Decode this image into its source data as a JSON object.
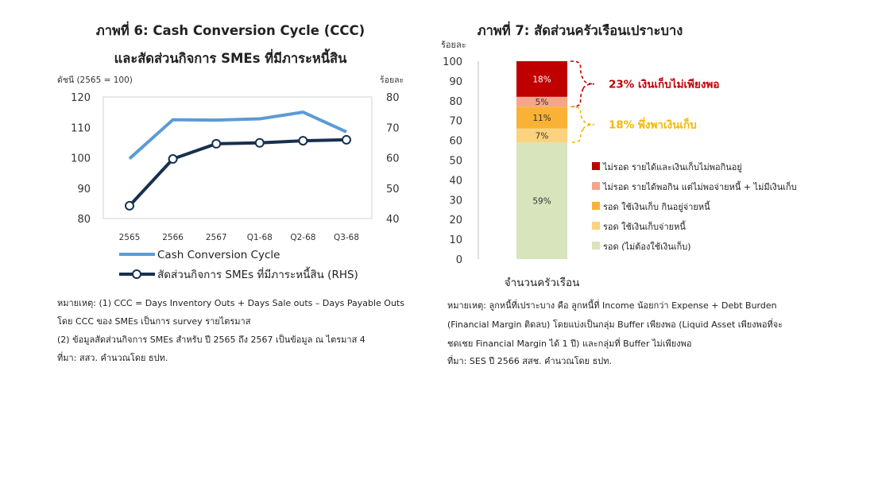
{
  "left_chart": {
    "title_line1": "ภาพที่ 6: Cash Conversion Cycle (CCC)",
    "title_line2": "และสัดส่วนกิจการ SMEs ที่มีภาระหนี้สิน",
    "notes": [
      "หมายเหตุ: (1) CCC = Days Inventory Outs + Days Sale outs – Days Payable Outs",
      "โดย CCC ของ SMEs เป็นการ survey รายไตรมาส",
      "(2) ข้อมูลสัดส่วนกิจการ SMEs สำหรับ ปี 2565 ถึง 2567 เป็นข้อมูล ณ ไตรมาส 4",
      "ที่มา: สสว. คำนวณโดย ธปท."
    ]
  },
  "right_chart": {
    "title": "ภาพที่ 7: สัดส่วนครัวเรือนเปราะบาง",
    "notes": [
      "หมายเหตุ: ลูกหนี้ที่เปราะบาง คือ ลูกหนี้ที่ Income น้อยกว่า Expense + Debt Burden",
      "(Financial Margin ติดลบ) โดยแบ่งเป็นกลุ่ม Buffer เพียงพอ (Liquid Asset เพียงพอที่จะ",
      "ชดเชย Financial Margin ได้ 1 ปี) และกลุ่มที่ Buffer ไม่เพียงพอ",
      "ที่มา: SES ปี 2566 สสช. คำนวณโดย ธปท."
    ]
  },
  "chart_data": [
    {
      "type": "line",
      "title": "ภาพที่ 6: Cash Conversion Cycle (CCC) และสัดส่วนกิจการ SMEs ที่มีภาระหนี้สิน",
      "categories": [
        "2565",
        "2566",
        "2567",
        "Q1-68",
        "Q2-68",
        "Q3-68"
      ],
      "ylabel": "ดัชนี (2565 = 100)",
      "ylabel_right": "ร้อยละ",
      "ylim": [
        80,
        120
      ],
      "yticks": [
        80,
        90,
        100,
        110,
        120
      ],
      "ylim_right": [
        40,
        80
      ],
      "yticks_right": [
        40,
        50,
        60,
        70,
        80
      ],
      "series": [
        {
          "name": "Cash Conversion Cycle",
          "axis": "left",
          "color": "#5b9bd5",
          "values": [
            99.7,
            112.5,
            112.4,
            112.8,
            115.0,
            108.5
          ]
        },
        {
          "name": "สัดส่วนกิจการ SMEs ที่มีภาระหนี้สิน (RHS)",
          "axis": "right",
          "color": "#17304f",
          "values": [
            44.2,
            59.6,
            64.6,
            64.9,
            65.6,
            65.9
          ]
        }
      ],
      "legend_position": "bottom"
    },
    {
      "type": "bar",
      "stacked": true,
      "title": "ภาพที่ 7: สัดส่วนครัวเรือนเปราะบาง",
      "ylabel": "ร้อยละ",
      "xlabel": "จำนวนครัวเรือน",
      "ylim": [
        0,
        100
      ],
      "yticks": [
        0,
        10,
        20,
        30,
        40,
        50,
        60,
        70,
        80,
        90,
        100
      ],
      "segments": [
        {
          "name": "รอด (ไม่ต้องใช้เงินเก็บ)",
          "value": 59,
          "label": "59%",
          "color": "#d8e4bc",
          "label_color": "#333333"
        },
        {
          "name": "รอด ใช้เงินเก็บจ่ายหนี้",
          "value": 7,
          "label": "7%",
          "color": "#fbd27d",
          "label_color": "#333333"
        },
        {
          "name": "รอด ใช้เงินเก็บ กินอยู่จ่ายหนี้",
          "value": 11,
          "label": "11%",
          "color": "#f9b234",
          "label_color": "#333333"
        },
        {
          "name": "ไม่รอด รายได้พอกิน แต่ไม่พอจ่ายหนี้ + ไม่มีเงินเก็บ",
          "value": 5,
          "label": "5%",
          "color": "#f4a58a",
          "label_color": "#333333"
        },
        {
          "name": "ไม่รอด รายได้และเงินเก็บไม่พอกินอยู่",
          "value": 18,
          "label": "18%",
          "color": "#c00000",
          "label_color": "#ffffff"
        }
      ],
      "legend_order": [
        4,
        3,
        2,
        1,
        0
      ],
      "annotations": [
        {
          "text": "23% เงินเก็บไม่เพียงพอ",
          "color": "#c00000"
        },
        {
          "text": "18% พึ่งพาเงินเก็บ",
          "color": "#f2b800"
        }
      ]
    }
  ]
}
